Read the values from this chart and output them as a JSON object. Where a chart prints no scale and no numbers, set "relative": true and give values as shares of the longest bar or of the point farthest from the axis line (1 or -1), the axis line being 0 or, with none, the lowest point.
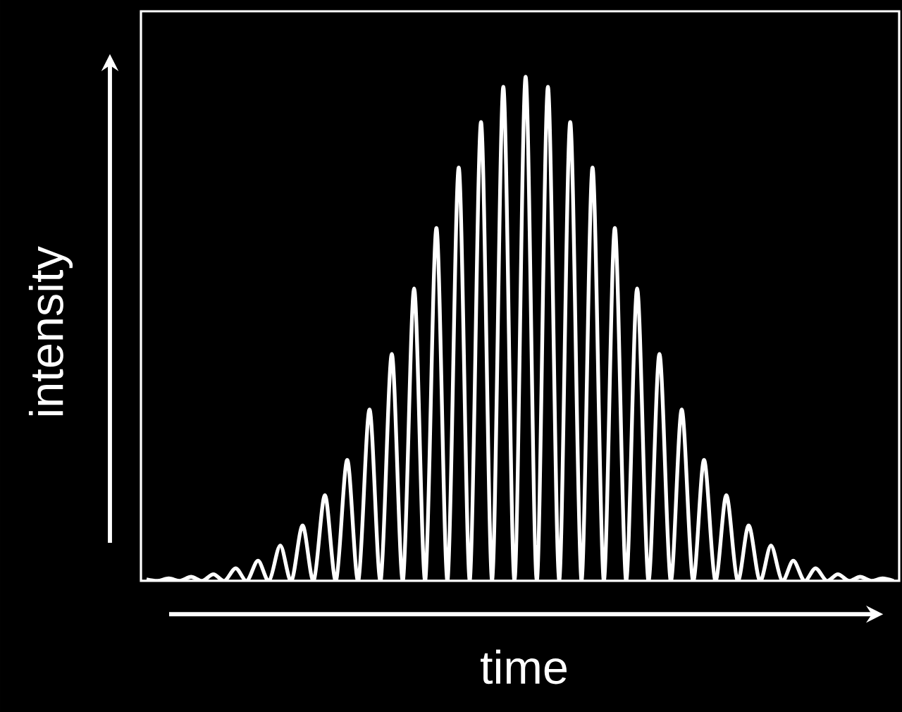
{
  "chart_data": {
    "type": "line",
    "relative": true,
    "xlabel": "time",
    "ylabel": "intensity",
    "categories": [
      null,
      null,
      null,
      null,
      null,
      null,
      null,
      null,
      null,
      null,
      null,
      null,
      null,
      null,
      null,
      null,
      null,
      null,
      null,
      null,
      null,
      null,
      null,
      null,
      null,
      null,
      null,
      null,
      null,
      null,
      null,
      null,
      null,
      null,
      null,
      null,
      null,
      null,
      null,
      null,
      null,
      null,
      null,
      null,
      null,
      null,
      null,
      null,
      null,
      null,
      null,
      null,
      null,
      null,
      null,
      null,
      null,
      null,
      null,
      null,
      null,
      null,
      null,
      null,
      null,
      null,
      null,
      null
    ],
    "series": [
      {
        "color": "#ffffff",
        "values": [
          0.003,
          0,
          0.005,
          0,
          0.008,
          0,
          0.013,
          0,
          0.025,
          0,
          0.04,
          0,
          0.07,
          0,
          0.11,
          0,
          0.17,
          0,
          0.24,
          0,
          0.34,
          0,
          0.45,
          0,
          0.58,
          0,
          0.7,
          0,
          0.82,
          0,
          0.91,
          0,
          0.98,
          0,
          1,
          0,
          0.98,
          0,
          0.91,
          0,
          0.82,
          0,
          0.7,
          0,
          0.58,
          0,
          0.45,
          0,
          0.34,
          0,
          0.24,
          0,
          0.17,
          0,
          0.11,
          0,
          0.07,
          0,
          0.04,
          0,
          0.025,
          0,
          0.013,
          0,
          0.008,
          0,
          0.005,
          0
        ]
      }
    ],
    "marker": "none",
    "line_style": "solid"
  }
}
